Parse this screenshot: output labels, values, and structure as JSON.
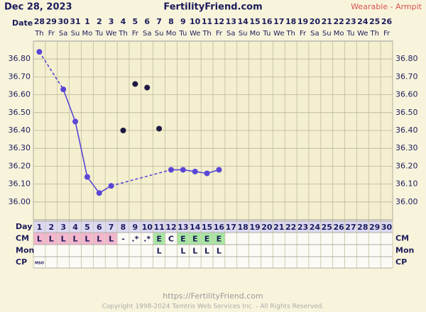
{
  "header": {
    "date": "Dec 28, 2023",
    "site": "FertilityFriend.com",
    "method": "Wearable - Armpit"
  },
  "chart_data": {
    "type": "line",
    "x_label": "Date",
    "categories": [
      "28",
      "29",
      "30",
      "31",
      "1",
      "2",
      "3",
      "4",
      "5",
      "6",
      "7",
      "8",
      "9",
      "10",
      "11",
      "12",
      "13",
      "14",
      "15",
      "16",
      "17",
      "18",
      "19",
      "20",
      "21",
      "22",
      "23",
      "24",
      "25",
      "26"
    ],
    "weekdays": [
      "Th",
      "Fr",
      "Sa",
      "Su",
      "Mo",
      "Tu",
      "We",
      "Th",
      "Fr",
      "Sa",
      "Su",
      "Mo",
      "Tu",
      "We",
      "Th",
      "Fr",
      "Sa",
      "Su",
      "Mo",
      "Tu",
      "We",
      "Th",
      "Fr",
      "Sa",
      "Su",
      "Mo",
      "Tu",
      "We",
      "Th",
      "Fr"
    ],
    "ylim": [
      35.9,
      36.9
    ],
    "yticks": [
      {
        "value": 36.0,
        "label": "36.00"
      },
      {
        "value": 36.1,
        "label": "36.10"
      },
      {
        "value": 36.2,
        "label": "36.20"
      },
      {
        "value": 36.3,
        "label": "36.30"
      },
      {
        "value": 36.4,
        "label": "36.40"
      },
      {
        "value": 36.5,
        "label": "36.50"
      },
      {
        "value": 36.6,
        "label": "36.60"
      },
      {
        "value": 36.7,
        "label": "36.70"
      },
      {
        "value": 36.8,
        "label": "36.80"
      }
    ],
    "grid": true,
    "gap_line": "dashed",
    "series": [
      {
        "color": "#5a46d6",
        "values": [
          36.84,
          null,
          36.63,
          36.45,
          36.14,
          36.05,
          36.09,
          null,
          null,
          null,
          null,
          36.18,
          36.18,
          36.17,
          36.16,
          36.18,
          null,
          null,
          null,
          null,
          null,
          null,
          null,
          null,
          null,
          null,
          null,
          null,
          null,
          null
        ]
      },
      {
        "color": "#1e1a44",
        "values": [
          null,
          null,
          null,
          null,
          null,
          null,
          null,
          36.4,
          36.66,
          36.64,
          36.41,
          null,
          null,
          null,
          null,
          null,
          null,
          null,
          null,
          null,
          null,
          null,
          null,
          null,
          null,
          null,
          null,
          null,
          null,
          null
        ]
      }
    ]
  },
  "table": {
    "rows": [
      {
        "label": "Day",
        "cells": [
          1,
          2,
          3,
          4,
          5,
          6,
          7,
          8,
          9,
          10,
          11,
          12,
          13,
          14,
          15,
          16,
          17,
          18,
          19,
          20,
          21,
          22,
          23,
          24,
          25,
          26,
          27,
          28,
          29,
          30
        ]
      },
      {
        "label": "CM",
        "cells": [
          "L",
          "L",
          "L",
          "L",
          "L",
          "L",
          "L",
          "-",
          ".*",
          ".*",
          "E",
          "C",
          "E",
          "E",
          "E",
          "E",
          null,
          null,
          null,
          null,
          null,
          null,
          null,
          null,
          null,
          null,
          null,
          null,
          null,
          null
        ]
      },
      {
        "label": "Mon",
        "cells": [
          null,
          null,
          null,
          null,
          null,
          null,
          null,
          null,
          null,
          null,
          "L",
          null,
          "L",
          "L",
          "L",
          "L",
          null,
          null,
          null,
          null,
          null,
          null,
          null,
          null,
          null,
          null,
          null,
          null,
          null,
          null
        ]
      },
      {
        "label": "CP",
        "cells": [
          "MSO",
          null,
          null,
          null,
          null,
          null,
          null,
          null,
          null,
          null,
          null,
          null,
          null,
          null,
          null,
          null,
          null,
          null,
          null,
          null,
          null,
          null,
          null,
          null,
          null,
          null,
          null,
          null,
          null,
          null
        ]
      }
    ],
    "cell_colors": {
      "L": "#f2b6cd",
      "E": "#a8e6a2"
    }
  },
  "footer": {
    "url": "https://FertilityFriend.com",
    "copyright": "Copyright 1998-2024 Tamtris Web Services Inc. - All Rights Reserved."
  }
}
